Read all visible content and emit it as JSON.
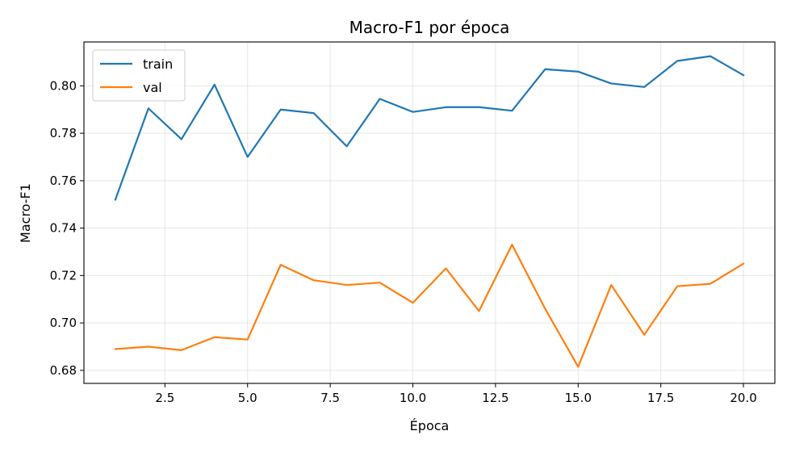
{
  "chart_data": {
    "type": "line",
    "title": "Macro-F1 por época",
    "xlabel": "Época",
    "ylabel": "Macro-F1",
    "x": [
      1,
      2,
      3,
      4,
      5,
      6,
      7,
      8,
      9,
      10,
      11,
      12,
      13,
      14,
      15,
      16,
      17,
      18,
      19,
      20
    ],
    "series": [
      {
        "name": "train",
        "color": "#1f77b4",
        "values": [
          0.752,
          0.7905,
          0.7775,
          0.8005,
          0.77,
          0.79,
          0.7885,
          0.7745,
          0.7945,
          0.789,
          0.791,
          0.791,
          0.7895,
          0.807,
          0.806,
          0.801,
          0.7995,
          0.8105,
          0.8125,
          0.8045
        ]
      },
      {
        "name": "val",
        "color": "#ff7f0e",
        "values": [
          0.689,
          0.69,
          0.6885,
          0.694,
          0.693,
          0.7245,
          0.718,
          0.716,
          0.717,
          0.7085,
          0.723,
          0.705,
          0.733,
          0.706,
          0.6815,
          0.716,
          0.695,
          0.7155,
          0.7165,
          0.725
        ]
      }
    ],
    "xlim": [
      0.05,
      20.95
    ],
    "ylim": [
      0.6745,
      0.8185
    ],
    "xticks": [
      2.5,
      5.0,
      7.5,
      10.0,
      12.5,
      15.0,
      17.5,
      20.0
    ],
    "xtick_labels": [
      "2.5",
      "5.0",
      "7.5",
      "10.0",
      "12.5",
      "15.0",
      "17.5",
      "20.0"
    ],
    "yticks": [
      0.68,
      0.7,
      0.72,
      0.74,
      0.76,
      0.78,
      0.8
    ],
    "ytick_labels": [
      "0.68",
      "0.70",
      "0.72",
      "0.74",
      "0.76",
      "0.78",
      "0.80"
    ],
    "grid": true,
    "legend_position": "top-left"
  }
}
